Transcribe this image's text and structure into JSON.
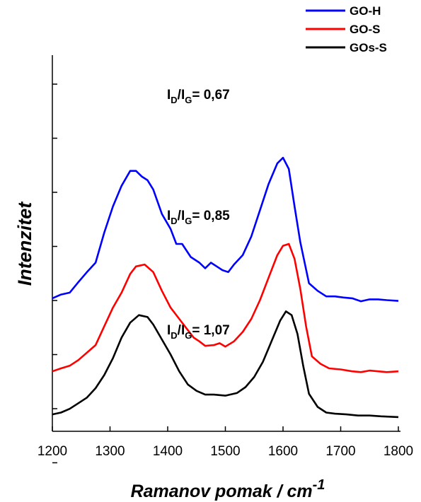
{
  "chart_data": {
    "type": "line",
    "xlabel": "Ramanov pomak / cm",
    "xlabel_sup": "-1",
    "ylabel": "Intenzitet",
    "xlim": [
      1200,
      1800
    ],
    "xticks": [
      "1200",
      "1300",
      "1400",
      "1500",
      "1600",
      "1700",
      "1800"
    ],
    "ylim": [
      0,
      100
    ],
    "grid": false,
    "legend_position": "top-right",
    "series": [
      {
        "name": "GO-H",
        "color": "#0000ff",
        "points": [
          [
            1200,
            35.5
          ],
          [
            1215,
            36.5
          ],
          [
            1230,
            37.0
          ],
          [
            1245,
            39.8
          ],
          [
            1260,
            42.5
          ],
          [
            1275,
            45.0
          ],
          [
            1290,
            53.0
          ],
          [
            1305,
            60.0
          ],
          [
            1320,
            65.5
          ],
          [
            1335,
            69.5
          ],
          [
            1345,
            69.5
          ],
          [
            1355,
            68.0
          ],
          [
            1365,
            67.0
          ],
          [
            1375,
            64.5
          ],
          [
            1390,
            58.0
          ],
          [
            1405,
            54.0
          ],
          [
            1415,
            50.0
          ],
          [
            1425,
            50.0
          ],
          [
            1440,
            46.5
          ],
          [
            1455,
            45.0
          ],
          [
            1465,
            43.5
          ],
          [
            1475,
            45.0
          ],
          [
            1485,
            44.0
          ],
          [
            1495,
            43.0
          ],
          [
            1505,
            42.5
          ],
          [
            1515,
            44.5
          ],
          [
            1530,
            47.0
          ],
          [
            1545,
            52.0
          ],
          [
            1560,
            59.0
          ],
          [
            1575,
            66.0
          ],
          [
            1590,
            71.5
          ],
          [
            1600,
            73.0
          ],
          [
            1610,
            70.0
          ],
          [
            1620,
            60.0
          ],
          [
            1630,
            50.5
          ],
          [
            1645,
            39.5
          ],
          [
            1660,
            37.5
          ],
          [
            1675,
            36.0
          ],
          [
            1690,
            36.0
          ],
          [
            1705,
            35.7
          ],
          [
            1720,
            35.5
          ],
          [
            1735,
            34.7
          ],
          [
            1750,
            35.2
          ],
          [
            1765,
            35.2
          ],
          [
            1780,
            35.0
          ],
          [
            1800,
            34.8
          ]
        ]
      },
      {
        "name": "GO-S",
        "color": "#ff0000",
        "points": [
          [
            1200,
            16.0
          ],
          [
            1215,
            16.8
          ],
          [
            1230,
            17.5
          ],
          [
            1245,
            19.0
          ],
          [
            1260,
            21.0
          ],
          [
            1275,
            23.0
          ],
          [
            1290,
            28.0
          ],
          [
            1305,
            33.0
          ],
          [
            1320,
            37.0
          ],
          [
            1335,
            42.0
          ],
          [
            1345,
            44.0
          ],
          [
            1360,
            44.5
          ],
          [
            1375,
            42.5
          ],
          [
            1390,
            37.5
          ],
          [
            1405,
            33.0
          ],
          [
            1420,
            30.0
          ],
          [
            1435,
            27.0
          ],
          [
            1445,
            25.0
          ],
          [
            1455,
            24.0
          ],
          [
            1465,
            22.8
          ],
          [
            1480,
            23.0
          ],
          [
            1490,
            23.5
          ],
          [
            1500,
            22.6
          ],
          [
            1515,
            24.0
          ],
          [
            1530,
            26.5
          ],
          [
            1545,
            30.0
          ],
          [
            1560,
            35.0
          ],
          [
            1575,
            41.0
          ],
          [
            1590,
            47.0
          ],
          [
            1600,
            49.5
          ],
          [
            1610,
            50.0
          ],
          [
            1620,
            46.0
          ],
          [
            1630,
            38.0
          ],
          [
            1640,
            28.0
          ],
          [
            1650,
            20.0
          ],
          [
            1665,
            18.0
          ],
          [
            1680,
            16.8
          ],
          [
            1700,
            16.5
          ],
          [
            1720,
            16.0
          ],
          [
            1735,
            15.8
          ],
          [
            1750,
            16.2
          ],
          [
            1765,
            16.0
          ],
          [
            1780,
            15.8
          ],
          [
            1800,
            16.0
          ]
        ]
      },
      {
        "name": "GOs-S",
        "color": "#000000",
        "points": [
          [
            1200,
            4.5
          ],
          [
            1215,
            5.0
          ],
          [
            1230,
            6.0
          ],
          [
            1245,
            7.5
          ],
          [
            1260,
            9.0
          ],
          [
            1275,
            11.5
          ],
          [
            1290,
            15.0
          ],
          [
            1305,
            19.5
          ],
          [
            1320,
            25.0
          ],
          [
            1335,
            29.0
          ],
          [
            1350,
            31.0
          ],
          [
            1365,
            30.5
          ],
          [
            1375,
            28.5
          ],
          [
            1390,
            24.5
          ],
          [
            1405,
            20.5
          ],
          [
            1420,
            16.0
          ],
          [
            1435,
            12.5
          ],
          [
            1450,
            10.8
          ],
          [
            1465,
            9.8
          ],
          [
            1480,
            9.8
          ],
          [
            1500,
            9.5
          ],
          [
            1520,
            10.2
          ],
          [
            1535,
            11.8
          ],
          [
            1550,
            14.5
          ],
          [
            1565,
            18.5
          ],
          [
            1580,
            24.0
          ],
          [
            1595,
            29.5
          ],
          [
            1605,
            32.0
          ],
          [
            1615,
            31.0
          ],
          [
            1625,
            26.0
          ],
          [
            1635,
            17.5
          ],
          [
            1645,
            10.0
          ],
          [
            1660,
            6.5
          ],
          [
            1675,
            5.0
          ],
          [
            1690,
            4.7
          ],
          [
            1710,
            4.5
          ],
          [
            1730,
            4.2
          ],
          [
            1750,
            4.2
          ],
          [
            1770,
            4.0
          ],
          [
            1800,
            3.8
          ]
        ]
      }
    ],
    "annotations": [
      {
        "sub1": "D",
        "sub2": "G",
        "text": "= 0,67"
      },
      {
        "sub1": "D",
        "sub2": "G",
        "text": "= 0,85"
      },
      {
        "sub1": "D",
        "sub2": "G",
        "text": "= 1,07"
      }
    ]
  }
}
